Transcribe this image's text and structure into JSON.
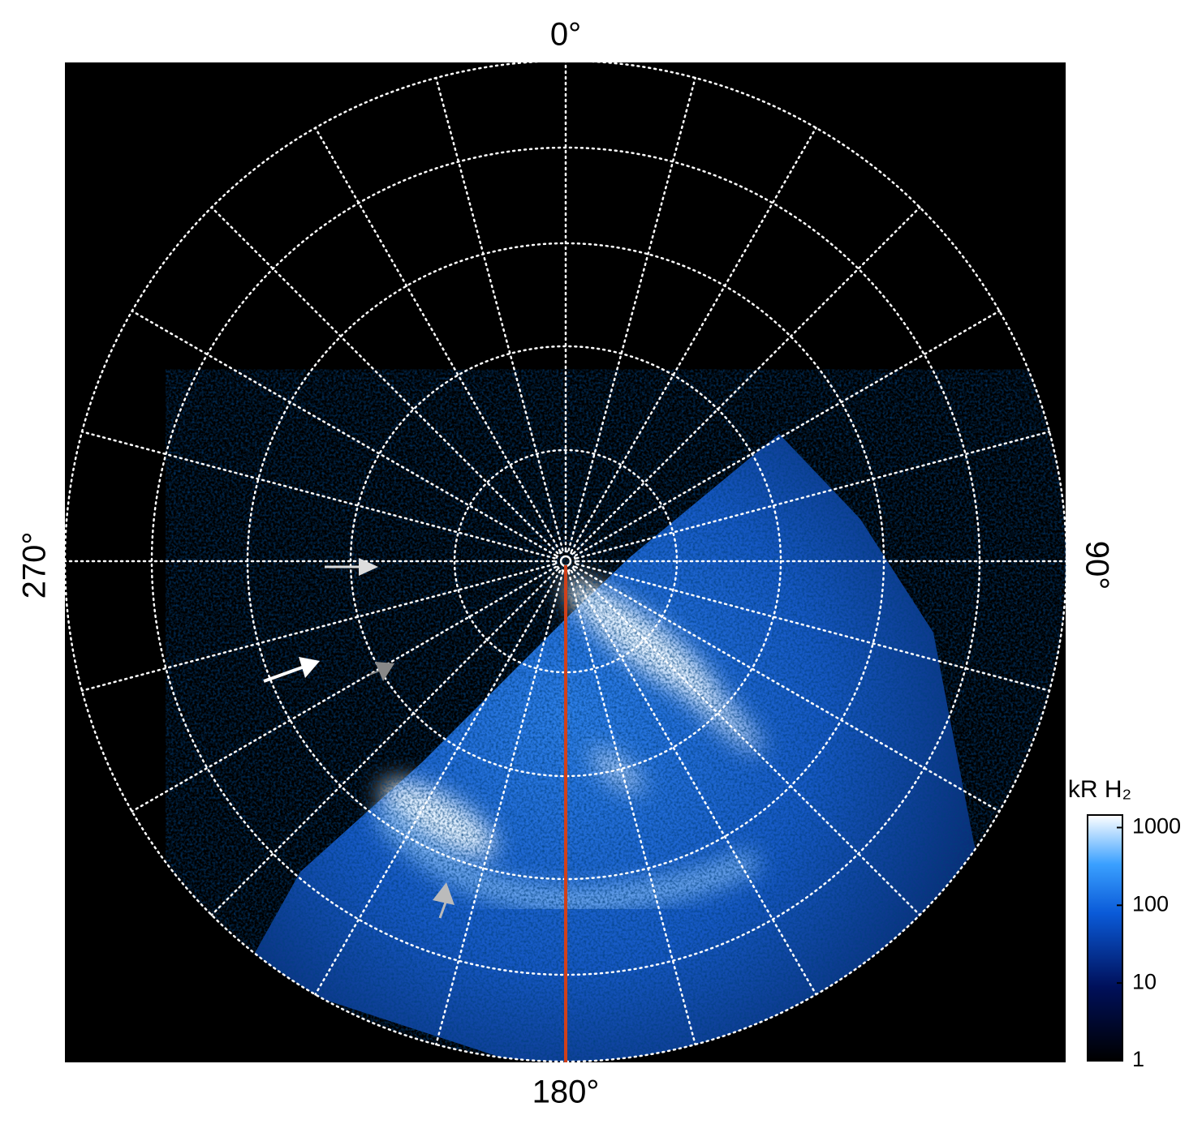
{
  "chart_data": {
    "type": "polar",
    "theta_ticks": [
      {
        "value": 0,
        "label": "0°"
      },
      {
        "value": 90,
        "label": "90°"
      },
      {
        "value": 180,
        "label": "180°"
      },
      {
        "value": 270,
        "label": "270°"
      }
    ],
    "colorbar": {
      "label": "kR H₂",
      "log": true,
      "ylim": [
        1,
        1450
      ],
      "yticks": [
        1,
        10,
        100,
        1000
      ]
    }
  }
}
